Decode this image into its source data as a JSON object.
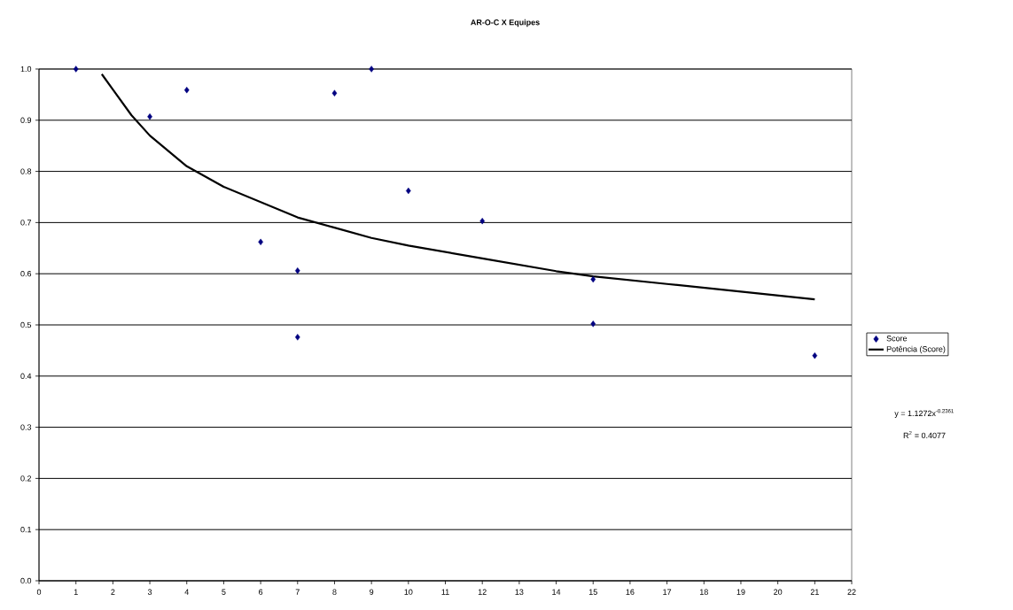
{
  "chart_data": {
    "type": "scatter",
    "title": "AR-O-C X Equipes",
    "xlim": [
      0,
      22
    ],
    "ylim": [
      0,
      1
    ],
    "xticks": [
      0,
      1,
      2,
      3,
      4,
      5,
      6,
      7,
      8,
      9,
      10,
      11,
      12,
      13,
      14,
      15,
      16,
      17,
      18,
      19,
      20,
      21,
      22
    ],
    "yticks": [
      {
        "value": 0,
        "label": "0.0"
      },
      {
        "value": 0.1,
        "label": "0.1"
      },
      {
        "value": 0.2,
        "label": "0.2"
      },
      {
        "value": 0.3,
        "label": "0.3"
      },
      {
        "value": 0.4,
        "label": "0.4"
      },
      {
        "value": 0.5,
        "label": "0.5"
      },
      {
        "value": 0.6,
        "label": "0.6"
      },
      {
        "value": 0.7,
        "label": "0.7"
      },
      {
        "value": 0.8,
        "label": "0.8"
      },
      {
        "value": 0.9,
        "label": "0.9"
      },
      {
        "value": 1.0,
        "label": "1.0"
      }
    ],
    "grid": "y",
    "legend": "right",
    "series": [
      {
        "name": "Score",
        "color": "#000080",
        "marker": "diamond",
        "x": [
          1,
          3,
          4,
          6,
          7,
          7,
          8,
          9,
          10,
          12,
          15,
          15,
          21
        ],
        "values": [
          1.0,
          0.907,
          0.959,
          0.662,
          0.606,
          0.476,
          0.953,
          1.0,
          0.762,
          0.703,
          0.589,
          0.502,
          0.44
        ]
      },
      {
        "name": "Potência (Score)",
        "type": "line",
        "color": "#000000",
        "marker": "none",
        "x": [
          1.7,
          2,
          2.5,
          3,
          4,
          5,
          6,
          7,
          8,
          9,
          10,
          12,
          14,
          15,
          17,
          19,
          21
        ],
        "values": [
          0.99,
          0.96,
          0.91,
          0.87,
          0.81,
          0.77,
          0.74,
          0.71,
          0.69,
          0.67,
          0.655,
          0.63,
          0.605,
          0.595,
          0.58,
          0.565,
          0.55
        ]
      }
    ],
    "annotations": [
      "y = 1.1272x$^{-0.2361}$",
      "R$^{2}$ = 0.4077"
    ]
  }
}
